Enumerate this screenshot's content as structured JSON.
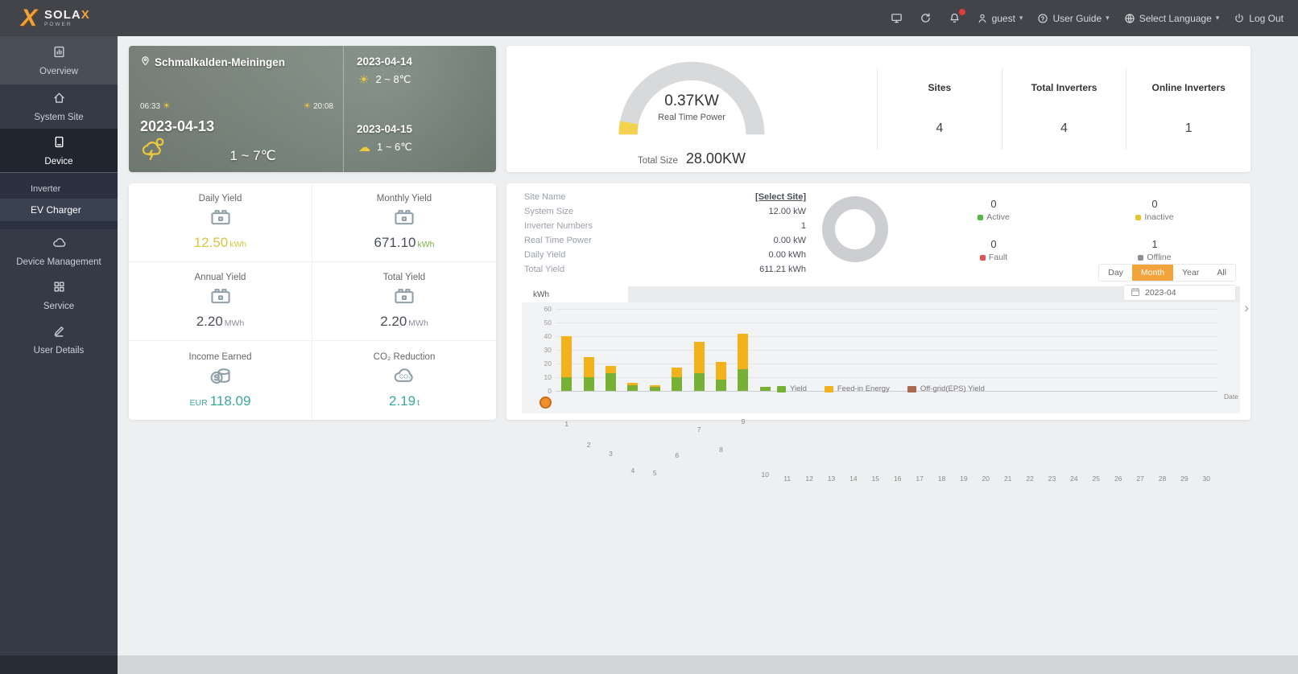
{
  "brand": {
    "title": "SOLA",
    "title_x": "X",
    "subtitle": "POWER"
  },
  "navbar": {
    "icons": [
      {
        "name": "monitor-icon"
      },
      {
        "name": "refresh-icon"
      },
      {
        "name": "bell-icon",
        "badge": true
      }
    ],
    "user": {
      "icon": "user-icon",
      "label": "guest"
    },
    "links": [
      {
        "icon": "help-icon",
        "label": "User Guide",
        "caret": true
      },
      {
        "icon": "globe-icon",
        "label": "Select Language",
        "caret": true
      },
      {
        "icon": "power-icon",
        "label": "Log Out",
        "caret": false
      }
    ]
  },
  "sidebar": {
    "items": [
      {
        "id": "overview",
        "label": "Overview",
        "icon": "overview-icon",
        "state": "light"
      },
      {
        "id": "system-site",
        "label": "System Site",
        "icon": "site-icon",
        "state": "normal"
      },
      {
        "id": "device",
        "label": "Device",
        "icon": "device-icon",
        "state": "active",
        "children": [
          {
            "label": "Inverter",
            "selected": false
          },
          {
            "label": "EV Charger",
            "selected": true
          }
        ]
      },
      {
        "id": "device-management",
        "label": "Device Management",
        "icon": "device-management-icon",
        "state": "normal"
      },
      {
        "id": "service",
        "label": "Service",
        "icon": "service-icon",
        "state": "normal"
      },
      {
        "id": "user-details",
        "label": "User Details",
        "icon": "user-details-icon",
        "state": "normal"
      }
    ]
  },
  "weather": {
    "location": "Schmalkalden-Meiningen",
    "sunrise": "06:33",
    "sunset": "20:08",
    "today": {
      "date": "2023-04-13",
      "temp": "1 ~ 7℃"
    },
    "forecast": [
      {
        "date": "2023-04-14",
        "temp": "2 ~ 8℃"
      },
      {
        "date": "2023-04-15",
        "temp": "1 ~ 6℃"
      }
    ]
  },
  "gauge": {
    "value": "0.37KW",
    "label": "Real Time Power",
    "total_label": "Total Size",
    "total_value": "28.00KW",
    "percent": 6,
    "track_color": "#d8d9db",
    "fill_color": "#f4d14e"
  },
  "summary_stats": [
    {
      "label": "Sites",
      "value": "4"
    },
    {
      "label": "Total Inverters",
      "value": "4"
    },
    {
      "label": "Online Inverters",
      "value": "1"
    }
  ],
  "yield_card": {
    "cells": [
      {
        "id": "daily-yield",
        "label": "Daily Yield",
        "icon": "battery-icon",
        "prefix": "",
        "value": "12.50",
        "unit": "kWh",
        "value_color": "#d8c63e",
        "unit_color": "#d8c63e"
      },
      {
        "id": "monthly-yield",
        "label": "Monthly Yield",
        "icon": "battery-icon",
        "prefix": "",
        "value": "671.10",
        "unit": "kWh",
        "value_color": "#4a4f57",
        "unit_color": "#7cb342"
      },
      {
        "id": "annual-yield",
        "label": "Annual Yield",
        "icon": "battery-icon",
        "prefix": "",
        "value": "2.20",
        "unit": "MWh",
        "value_color": "#4a4f57",
        "unit_color": "#8a9099"
      },
      {
        "id": "total-yield",
        "label": "Total Yield",
        "icon": "battery-icon",
        "prefix": "",
        "value": "2.20",
        "unit": "MWh",
        "value_color": "#4a4f57",
        "unit_color": "#8a9099"
      },
      {
        "id": "income-earned",
        "label": "Income Earned",
        "icon": "coin-icon",
        "prefix": "EUR",
        "value": "118.09",
        "unit": "",
        "value_color": "#3aa79d",
        "unit_color": "#3aa79d"
      },
      {
        "id": "co2-reduction",
        "label": "CO₂ Reduction",
        "icon": "co2-icon",
        "prefix": "",
        "value": "2.19",
        "unit": "t",
        "value_color": "#3aa79d",
        "unit_color": "#3aa79d"
      }
    ]
  },
  "site_card": {
    "rows": [
      {
        "label": "Site Name",
        "value": "[Select Site]",
        "link": true
      },
      {
        "label": "System Size",
        "value": "12.00 kW"
      },
      {
        "label": "Inverter Numbers",
        "value": "1"
      },
      {
        "label": "Real Time Power",
        "value": "0.00 kW"
      },
      {
        "label": "Daily Yield",
        "value": "0.00 kWh"
      },
      {
        "label": "Total Yield",
        "value": "611.21 kWh"
      }
    ],
    "statuses": [
      {
        "label": "Active",
        "value": "0",
        "color": "#57b847"
      },
      {
        "label": "Inactive",
        "value": "0",
        "color": "#e6c52c"
      },
      {
        "label": "Fault",
        "value": "0",
        "color": "#e05252"
      },
      {
        "label": "Offline",
        "value": "1",
        "color": "#8a8f98"
      }
    ],
    "range_buttons": [
      {
        "label": "Day",
        "active": false
      },
      {
        "label": "Month",
        "active": true
      },
      {
        "label": "Year",
        "active": false
      },
      {
        "label": "All",
        "active": false
      }
    ],
    "date_value": "2023-04",
    "unit_tab": "kWh"
  },
  "chart_data": {
    "type": "bar",
    "stacked": true,
    "categories": [
      1,
      2,
      3,
      4,
      5,
      6,
      7,
      8,
      9,
      10,
      11,
      12,
      13,
      14,
      15,
      16,
      17,
      18,
      19,
      20,
      21,
      22,
      23,
      24,
      25,
      26,
      27,
      28,
      29,
      30
    ],
    "x_tail_label": "Date",
    "series": [
      {
        "name": "Yield",
        "color": "#76b136",
        "values": [
          10,
          10,
          13,
          4,
          3,
          10,
          13,
          8,
          16,
          3,
          0,
          0,
          0,
          0,
          0,
          0,
          0,
          0,
          0,
          0,
          0,
          0,
          0,
          0,
          0,
          0,
          0,
          0,
          0,
          0
        ]
      },
      {
        "name": "Feed-in Energy",
        "color": "#f2b21c",
        "values": [
          30,
          15,
          5,
          2,
          1,
          7,
          23,
          13,
          26,
          0,
          0,
          0,
          0,
          0,
          0,
          0,
          0,
          0,
          0,
          0,
          0,
          0,
          0,
          0,
          0,
          0,
          0,
          0,
          0,
          0
        ]
      },
      {
        "name": "Off-grid(EPS) Yield",
        "color": "#a9684f",
        "values": [
          0,
          0,
          0,
          0,
          0,
          0,
          0,
          0,
          0,
          0,
          0,
          0,
          0,
          0,
          0,
          0,
          0,
          0,
          0,
          0,
          0,
          0,
          0,
          0,
          0,
          0,
          0,
          0,
          0,
          0
        ]
      }
    ],
    "ylim": [
      0,
      60
    ],
    "yticks": [
      0,
      10,
      20,
      30,
      40,
      50,
      60
    ],
    "grid": true,
    "legend_position": "bottom"
  },
  "colors": {
    "accent": "#f2a33c",
    "navbar_bg": "#434449",
    "sidebar_bg": "#343a46"
  }
}
